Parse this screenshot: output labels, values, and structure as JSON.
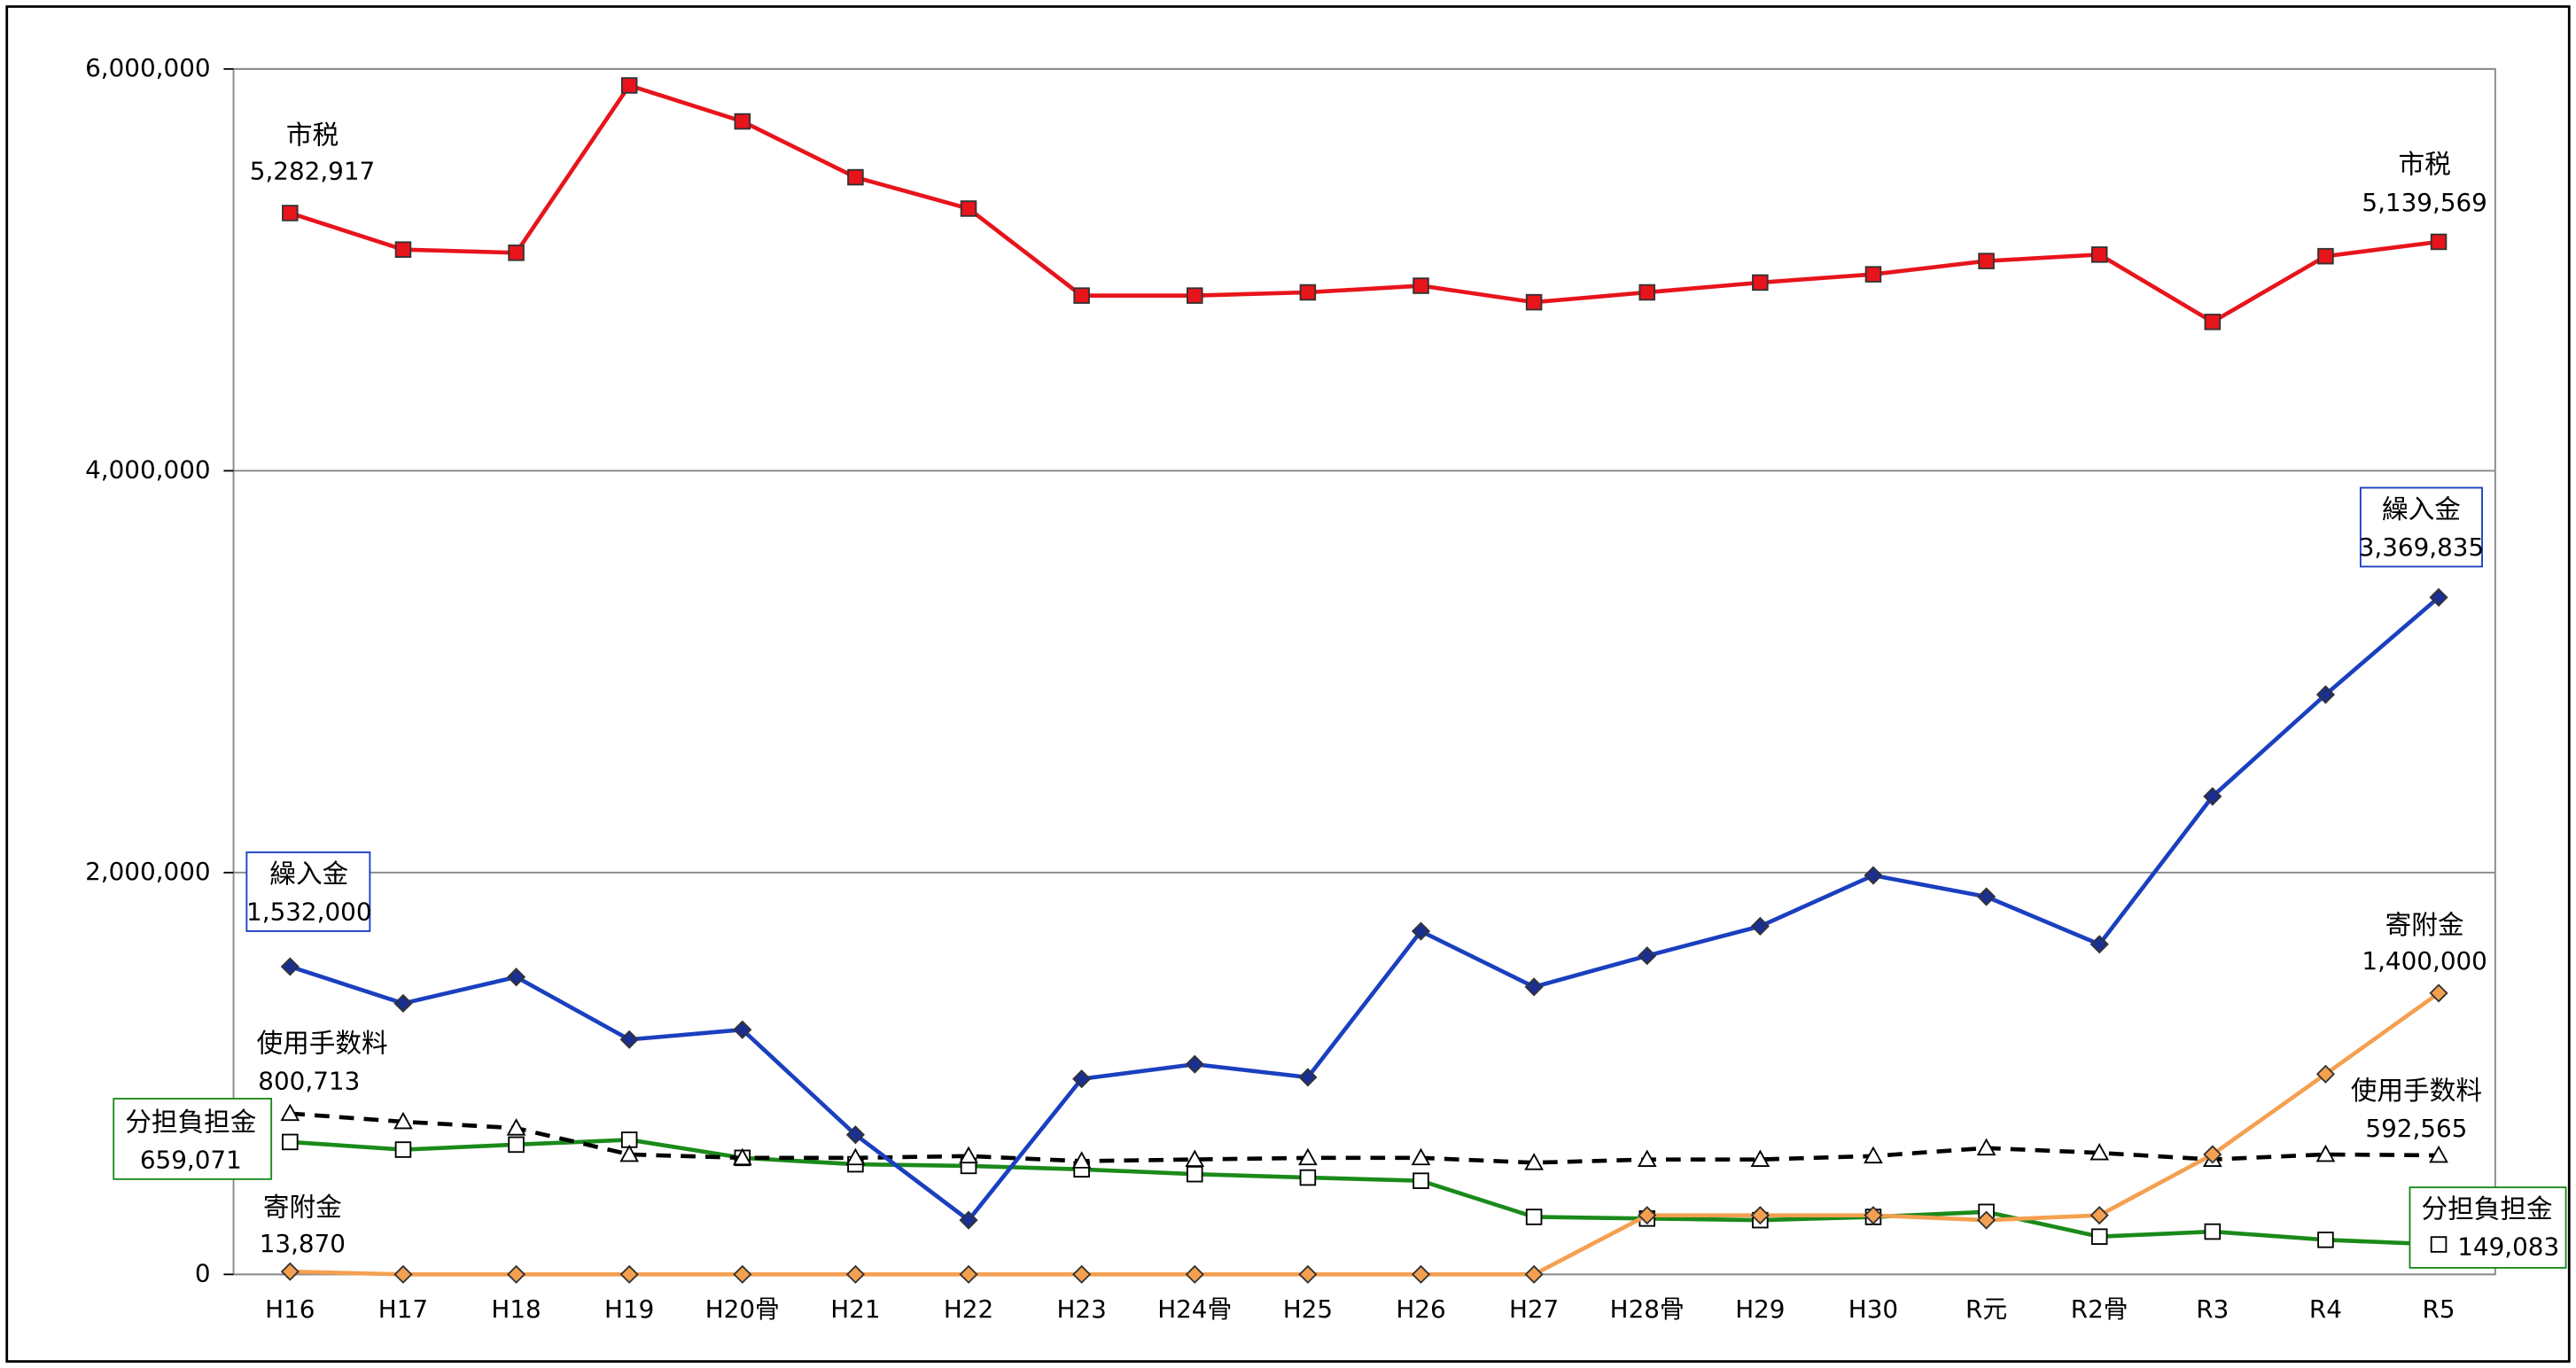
{
  "chart_data": {
    "type": "line",
    "categories": [
      "H16",
      "H17",
      "H18",
      "H19",
      "H20骨",
      "H21",
      "H22",
      "H23",
      "H24骨",
      "H25",
      "H26",
      "H27",
      "H28骨",
      "H29",
      "H30",
      "R元",
      "R2骨",
      "R3",
      "R4",
      "R5"
    ],
    "ylim": [
      0,
      6000000
    ],
    "yticks": [
      {
        "value": 0,
        "label": "0"
      },
      {
        "value": 2000000,
        "label": "2,000,000"
      },
      {
        "value": 4000000,
        "label": "4,000,000"
      },
      {
        "value": 6000000,
        "label": "6,000,000"
      }
    ],
    "grid": true,
    "series": [
      {
        "name": "市税",
        "color": "#e8141b",
        "marker": "square",
        "marker_fill": "#e8141b",
        "dash": false,
        "values": [
          5282917,
          5101000,
          5085000,
          5918000,
          5739000,
          5461000,
          5305000,
          4872000,
          4872000,
          4888000,
          4921000,
          4839000,
          4888000,
          4937000,
          4978000,
          5044000,
          5076000,
          4741000,
          5068000,
          5139569
        ],
        "value_labels": [
          "5,282,917",
          null,
          null,
          null,
          null,
          null,
          null,
          null,
          null,
          null,
          null,
          null,
          null,
          null,
          null,
          null,
          null,
          null,
          null,
          "5,139,569"
        ]
      },
      {
        "name": "繰入金",
        "color": "#1a3fbf",
        "marker": "diamond",
        "marker_fill": "#1a2f8f",
        "dash": false,
        "values": [
          1532000,
          1349000,
          1480000,
          1169000,
          1218000,
          695000,
          270000,
          973000,
          1046000,
          981000,
          1708000,
          1431000,
          1586000,
          1733000,
          1986000,
          1880000,
          1643000,
          2379000,
          2886000,
          3369835
        ],
        "value_labels": [
          "1,532,000",
          null,
          null,
          null,
          null,
          null,
          null,
          null,
          null,
          null,
          null,
          null,
          null,
          null,
          null,
          null,
          null,
          null,
          null,
          "3,369,835"
        ]
      },
      {
        "name": "使用手数料",
        "color": "#000000",
        "marker": "triangle",
        "marker_fill": "#ffffff",
        "dash": true,
        "values": [
          800713,
          760000,
          728000,
          597000,
          580000,
          580000,
          589000,
          564000,
          572000,
          580000,
          580000,
          556000,
          572000,
          572000,
          589000,
          629000,
          605000,
          572000,
          597000,
          592565
        ],
        "value_labels": [
          "800,713",
          null,
          null,
          null,
          null,
          null,
          null,
          null,
          null,
          null,
          null,
          null,
          null,
          null,
          null,
          null,
          null,
          null,
          null,
          "592,565"
        ]
      },
      {
        "name": "分担負担金",
        "color": "#1a8a1a",
        "marker": "square",
        "marker_fill": "#ffffff",
        "dash": false,
        "values": [
          659071,
          621000,
          646000,
          670000,
          580000,
          548000,
          540000,
          523000,
          499000,
          482000,
          466000,
          286000,
          278000,
          270000,
          286000,
          311000,
          188000,
          213000,
          172000,
          149083
        ],
        "value_labels": [
          "659,071",
          null,
          null,
          null,
          null,
          null,
          null,
          null,
          null,
          null,
          null,
          null,
          null,
          null,
          null,
          null,
          null,
          null,
          null,
          "149,083"
        ]
      },
      {
        "name": "寄附金",
        "color": "#f4a050",
        "marker": "diamond",
        "marker_fill": "#f4a050",
        "dash": false,
        "values": [
          13870,
          0,
          0,
          0,
          0,
          0,
          0,
          0,
          0,
          0,
          0,
          0,
          294000,
          294000,
          294000,
          270000,
          294000,
          597000,
          997000,
          1400000
        ],
        "value_labels": [
          "13,870",
          null,
          null,
          null,
          null,
          null,
          null,
          null,
          null,
          null,
          null,
          null,
          null,
          null,
          null,
          null,
          null,
          null,
          null,
          "1,400,000"
        ]
      }
    ]
  }
}
